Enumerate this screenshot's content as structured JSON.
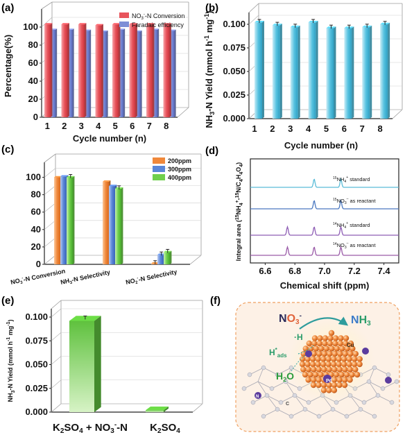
{
  "panels": {
    "a": "(a)",
    "b": "(b)",
    "c": "(c)",
    "d": "(d)",
    "e": "(e)",
    "f": "(f)"
  },
  "chart_data": [
    {
      "id": "a",
      "type": "bar",
      "xlabel": "Cycle number (n)",
      "ylabel": "Percentage(%)",
      "categories": [
        "1",
        "2",
        "3",
        "4",
        "5",
        "6",
        "7",
        "8"
      ],
      "ylim": [
        0,
        120
      ],
      "yticks": [
        "0",
        "20",
        "40",
        "60",
        "80",
        "100"
      ],
      "legend_position": "top-right",
      "series": [
        {
          "name": "NO3–-N Conversion",
          "name_base": "NO",
          "name_sub": "3",
          "name_sup": "-",
          "name_rest": "-N Conversion",
          "color": "#e8545c",
          "values": [
            103,
            103,
            103,
            102,
            103,
            103,
            103,
            103
          ]
        },
        {
          "name": "Faradaic efficiency",
          "color": "#7e8ed6",
          "values": [
            97,
            97,
            96,
            95,
            97,
            95,
            97,
            96
          ]
        }
      ]
    },
    {
      "id": "b",
      "type": "bar",
      "xlabel": "Cycle number (n)",
      "ylabel": "NH3-N Yield (mmol h-1 mg-1)",
      "categories": [
        "1",
        "2",
        "3",
        "4",
        "5",
        "6",
        "7",
        "8"
      ],
      "ylim": [
        0,
        0.1
      ],
      "yticks": [
        "0.000",
        "0.025",
        "0.050",
        "0.075",
        "0.100"
      ],
      "series": [
        {
          "color": "#56c2e0",
          "values": [
            0.102,
            0.099,
            0.097,
            0.102,
            0.096,
            0.096,
            0.097,
            0.1
          ]
        }
      ]
    },
    {
      "id": "c",
      "type": "bar",
      "categories": [
        "NO3–-N Conversion",
        "NH3-N Selectivity",
        "NO2–-N Selectivity"
      ],
      "ylim": [
        0,
        110
      ],
      "yticks": [
        "0",
        "20",
        "40",
        "60",
        "80",
        "100"
      ],
      "legend_position": "top-right",
      "series": [
        {
          "name": "200ppm",
          "color": "#f0883a",
          "values": [
            100,
            95,
            1
          ]
        },
        {
          "name": "300ppm",
          "color": "#5a86d8",
          "values": [
            101,
            90,
            11
          ]
        },
        {
          "name": "400ppm",
          "color": "#6fcf4c",
          "values": [
            100,
            87,
            14
          ]
        }
      ]
    },
    {
      "id": "d",
      "type": "line",
      "xlabel": "Chemical shift (ppm)",
      "ylabel": "Integral area (15NH4+-15N/C4H4O4)",
      "xlim": [
        6.5,
        7.5
      ],
      "xticks": [
        "6.6",
        "6.8",
        "7.0",
        "7.2",
        "7.4"
      ],
      "series": [
        {
          "name": "15NH4+ standard",
          "color": "#5bbcd8",
          "peaks": [
            6.93,
            7.11
          ]
        },
        {
          "name": "15NO3– as reactant",
          "color": "#4a78c0",
          "peaks": [
            6.93,
            7.11
          ]
        },
        {
          "name": "14NH4+ standard",
          "color": "#8e5db5",
          "peaks": [
            6.75,
            6.93,
            7.11
          ]
        },
        {
          "name": "14NO3– as reactant",
          "color": "#9a5aa8",
          "peaks": [
            6.75,
            6.93,
            7.11
          ]
        }
      ]
    },
    {
      "id": "e",
      "type": "bar",
      "ylabel": "NH3-N Yield (mmol h-1 mg-1)",
      "categories": [
        "K2SO4 + NO3–-N",
        "K2SO4"
      ],
      "ylim": [
        0,
        0.1
      ],
      "yticks": [
        "0.000",
        "0.025",
        "0.050",
        "0.075",
        "0.100"
      ],
      "series": [
        {
          "color": "#5fc13e",
          "values": [
            0.096,
            0.002
          ]
        }
      ]
    }
  ],
  "schematic_f": {
    "reactant": "NO3–",
    "product": "NH3",
    "h_radical": "·H",
    "h_ads": "H*ads",
    "water": "H2O",
    "cu_label": "Cu",
    "pd_label": "Pd",
    "n_label": "N",
    "c_label": "C"
  }
}
